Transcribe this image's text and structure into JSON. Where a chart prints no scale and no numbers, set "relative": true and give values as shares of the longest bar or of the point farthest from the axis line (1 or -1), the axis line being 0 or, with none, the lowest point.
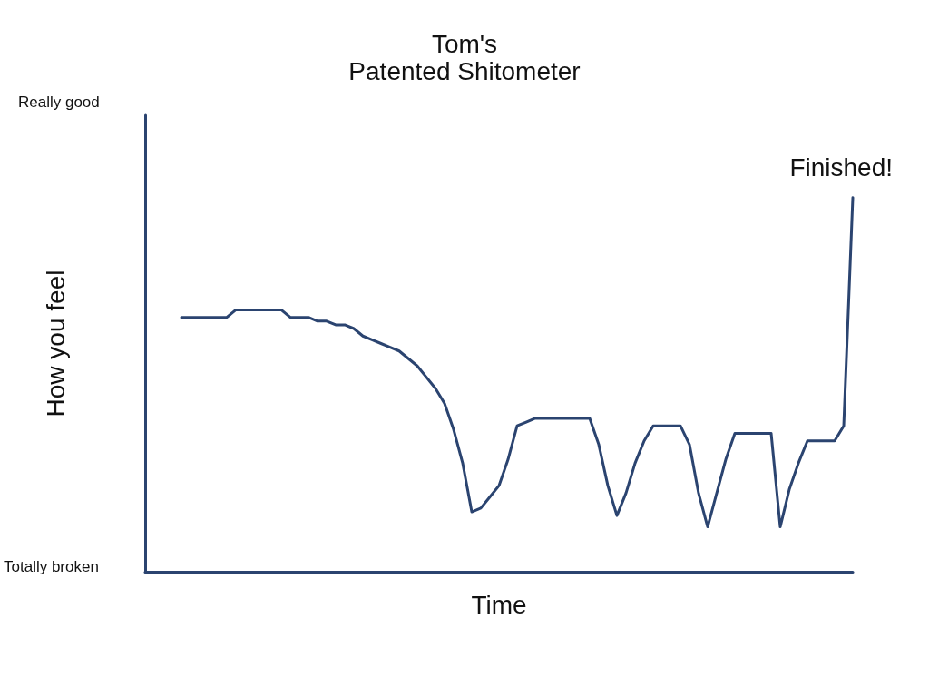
{
  "chart_data": {
    "type": "line",
    "title": "Tom's\nPatented Shitometer",
    "xlabel": "Time",
    "ylabel": "How you feel",
    "relative": true,
    "categories": [
      null,
      null,
      null,
      null,
      null,
      null,
      null,
      null,
      null,
      null,
      null,
      null,
      null,
      null,
      null,
      null,
      null,
      null,
      null,
      null,
      null,
      null,
      null,
      null,
      null,
      null,
      null,
      null,
      null,
      null,
      null,
      null,
      null,
      null,
      null,
      null,
      null,
      null,
      null,
      null,
      null,
      null,
      null,
      null,
      null,
      null,
      null,
      null,
      null,
      null,
      null,
      null,
      null,
      null,
      null,
      null,
      null,
      null,
      null,
      null,
      null,
      null,
      null,
      null,
      null,
      null,
      null,
      null,
      null,
      null,
      null,
      null,
      null,
      null,
      null,
      null,
      null,
      null,
      null
    ],
    "series": [
      {
        "color": "#2b4470",
        "values": [
          null,
          null,
          null,
          null,
          0.68,
          0.68,
          0.68,
          0.68,
          0.68,
          0.68,
          0.7,
          0.7,
          0.7,
          0.7,
          0.7,
          0.7,
          0.68,
          0.68,
          0.68,
          0.67,
          0.67,
          0.66,
          0.66,
          0.65,
          0.63,
          0.62,
          0.61,
          0.6,
          0.59,
          0.57,
          0.55,
          0.52,
          0.49,
          0.45,
          0.38,
          0.29,
          0.16,
          0.17,
          0.2,
          0.23,
          0.3,
          0.39,
          0.4,
          0.41,
          0.41,
          0.41,
          0.41,
          0.41,
          0.41,
          0.41,
          0.34,
          0.23,
          0.15,
          0.21,
          0.29,
          0.35,
          0.39,
          0.39,
          0.39,
          0.39,
          0.34,
          0.21,
          0.12,
          0.21,
          0.3,
          0.37,
          0.37,
          0.37,
          0.37,
          0.37,
          0.12,
          0.22,
          0.29,
          0.35,
          0.35,
          0.35,
          0.35,
          0.39,
          1
        ]
      }
    ],
    "annotations": [
      "Really good",
      "Totally broken",
      "Finished!"
    ],
    "grid": false,
    "marker": "none",
    "line_style": "solid"
  }
}
